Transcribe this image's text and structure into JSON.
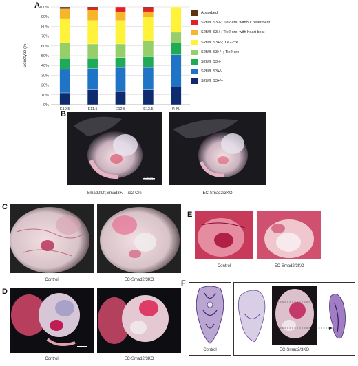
{
  "panels": {
    "a": "A",
    "b": "B",
    "c": "C",
    "d": "D",
    "e": "E",
    "f": "F"
  },
  "chart_data": {
    "type": "bar",
    "stacked": true,
    "categories": [
      "E10.5",
      "E11.5",
      "E12.5",
      "E13.5",
      "P. N."
    ],
    "ylabel": "Genotype (%)",
    "yticks": [
      "0%",
      "10%",
      "20%",
      "30%",
      "40%",
      "50%",
      "60%",
      "70%",
      "80%",
      "90%",
      "100%"
    ],
    "ylim": [
      0,
      100
    ],
    "grid": true,
    "legend_position": "right",
    "series": [
      {
        "name": "S2fl/fl; S3+/+",
        "color": "#0d2b6e",
        "values": [
          12,
          15,
          14,
          15,
          18
        ]
      },
      {
        "name": "S2fl/fl; S3+/-",
        "color": "#1f74c6",
        "values": [
          24,
          22,
          24,
          23,
          33
        ]
      },
      {
        "name": "S2fl/fl; S3-/-",
        "color": "#1faa55",
        "values": [
          11,
          10,
          10,
          11,
          12
        ]
      },
      {
        "name": "S2fl/fl; S3+/+; Tie2-cre",
        "color": "#96cf6a",
        "values": [
          16,
          15,
          14,
          16,
          11
        ]
      },
      {
        "name": "S2fl/fl; S3+/-; Tie2-cre",
        "color": "#fff23a",
        "values": [
          25,
          24,
          24,
          25,
          26
        ]
      },
      {
        "name": "S2fl/fl; S3-/-; Tie2-cre; with heart beat",
        "color": "#f7b52a",
        "values": [
          10,
          11,
          9,
          5,
          0
        ]
      },
      {
        "name": "S2fl/fl; S3-/-; Tie2-cre; without heart beat",
        "color": "#e41f26",
        "values": [
          0,
          2,
          5,
          4,
          0
        ]
      },
      {
        "name": "Absorbed",
        "color": "#5e3312",
        "values": [
          2,
          1,
          0,
          1,
          0
        ]
      }
    ]
  },
  "captions": {
    "b_left": "Smad2fl/fl;Smad3+/-;Tie2-Cre",
    "b_right": "EC-Smad2/3KO",
    "scale_bar": "1mm",
    "c_left": "Control",
    "c_right": "EC-Smad2/3KO",
    "d_left": "Control",
    "d_right": "EC-Smad2/3KO",
    "e_left": "Control",
    "e_right": "EC-Smad2/3KO",
    "f_left": "Control",
    "f_right": "EC-Smad2/3KO"
  }
}
